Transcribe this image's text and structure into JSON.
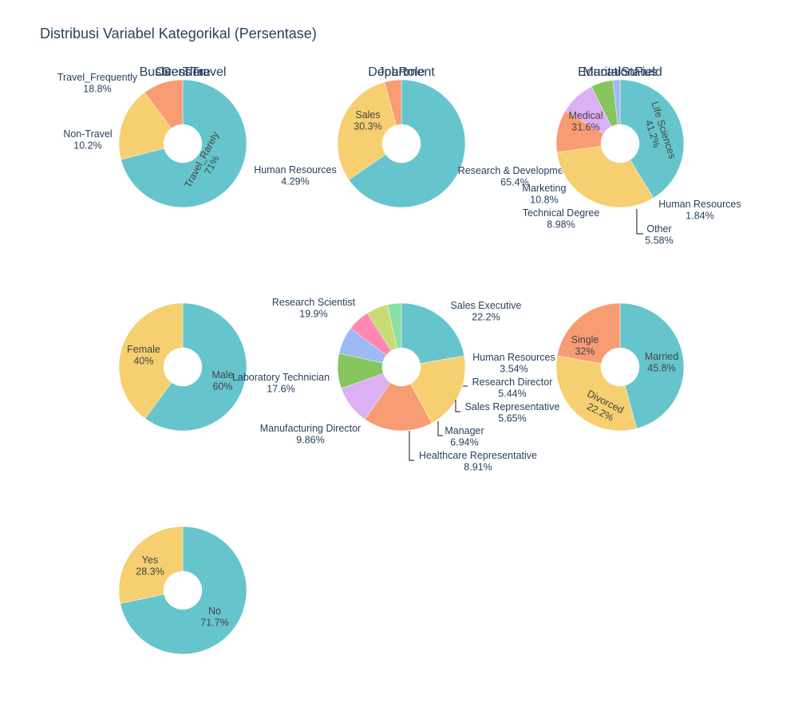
{
  "title": "Distribusi Variabel Kategorikal (Persentase)",
  "colors": [
    "#66c5cc",
    "#f6cf71",
    "#f89c74",
    "#dcb0f2",
    "#87c55f",
    "#9eb9f3",
    "#fe88b1",
    "#c9db74",
    "#8be0a4"
  ],
  "chart_data": [
    {
      "type": "pie",
      "title": "BusinessTravel",
      "hole": true,
      "labels": [
        "Travel_Rarely",
        "Travel_Frequently",
        "Non-Travel"
      ],
      "values": [
        71,
        18.8,
        10.2
      ],
      "text": [
        "71%",
        "18.8%",
        "10.2%"
      ]
    },
    {
      "type": "pie",
      "title": "Department",
      "hole": true,
      "labels": [
        "Research & Development",
        "Sales",
        "Human Resources"
      ],
      "values": [
        65.4,
        30.3,
        4.29
      ],
      "text": [
        "65.4%",
        "30.3%",
        "4.29%"
      ]
    },
    {
      "type": "pie",
      "title": "EducationField",
      "hole": true,
      "labels": [
        "Life Sciences",
        "Medical",
        "Marketing",
        "Technical Degree",
        "Other",
        "Human Resources"
      ],
      "values": [
        41.2,
        31.6,
        10.8,
        8.98,
        5.58,
        1.84
      ],
      "text": [
        "41.2%",
        "31.6%",
        "10.8%",
        "8.98%",
        "5.58%",
        "1.84%"
      ]
    },
    {
      "type": "pie",
      "title": "Gender",
      "hole": true,
      "labels": [
        "Male",
        "Female"
      ],
      "values": [
        60,
        40
      ],
      "text": [
        "60%",
        "40%"
      ]
    },
    {
      "type": "pie",
      "title": "JobRole",
      "hole": true,
      "labels": [
        "Sales Executive",
        "Research Scientist",
        "Laboratory Technician",
        "Manufacturing Director",
        "Healthcare Representative",
        "Manager",
        "Sales Representative",
        "Research Director",
        "Human Resources"
      ],
      "values": [
        22.2,
        19.9,
        17.6,
        9.86,
        8.91,
        6.94,
        5.65,
        5.44,
        3.54
      ],
      "text": [
        "22.2%",
        "19.9%",
        "17.6%",
        "9.86%",
        "8.91%",
        "6.94%",
        "5.65%",
        "5.44%",
        "3.54%"
      ]
    },
    {
      "type": "pie",
      "title": "MaritalStatus",
      "hole": true,
      "labels": [
        "Married",
        "Single",
        "Divorced"
      ],
      "values": [
        45.8,
        32,
        22.2
      ],
      "text": [
        "45.8%",
        "32%",
        "22.2%"
      ]
    },
    {
      "type": "pie",
      "title": "OverTime",
      "hole": true,
      "labels": [
        "No",
        "Yes"
      ],
      "values": [
        71.7,
        28.3
      ],
      "text": [
        "71.7%",
        "28.3%"
      ]
    }
  ]
}
